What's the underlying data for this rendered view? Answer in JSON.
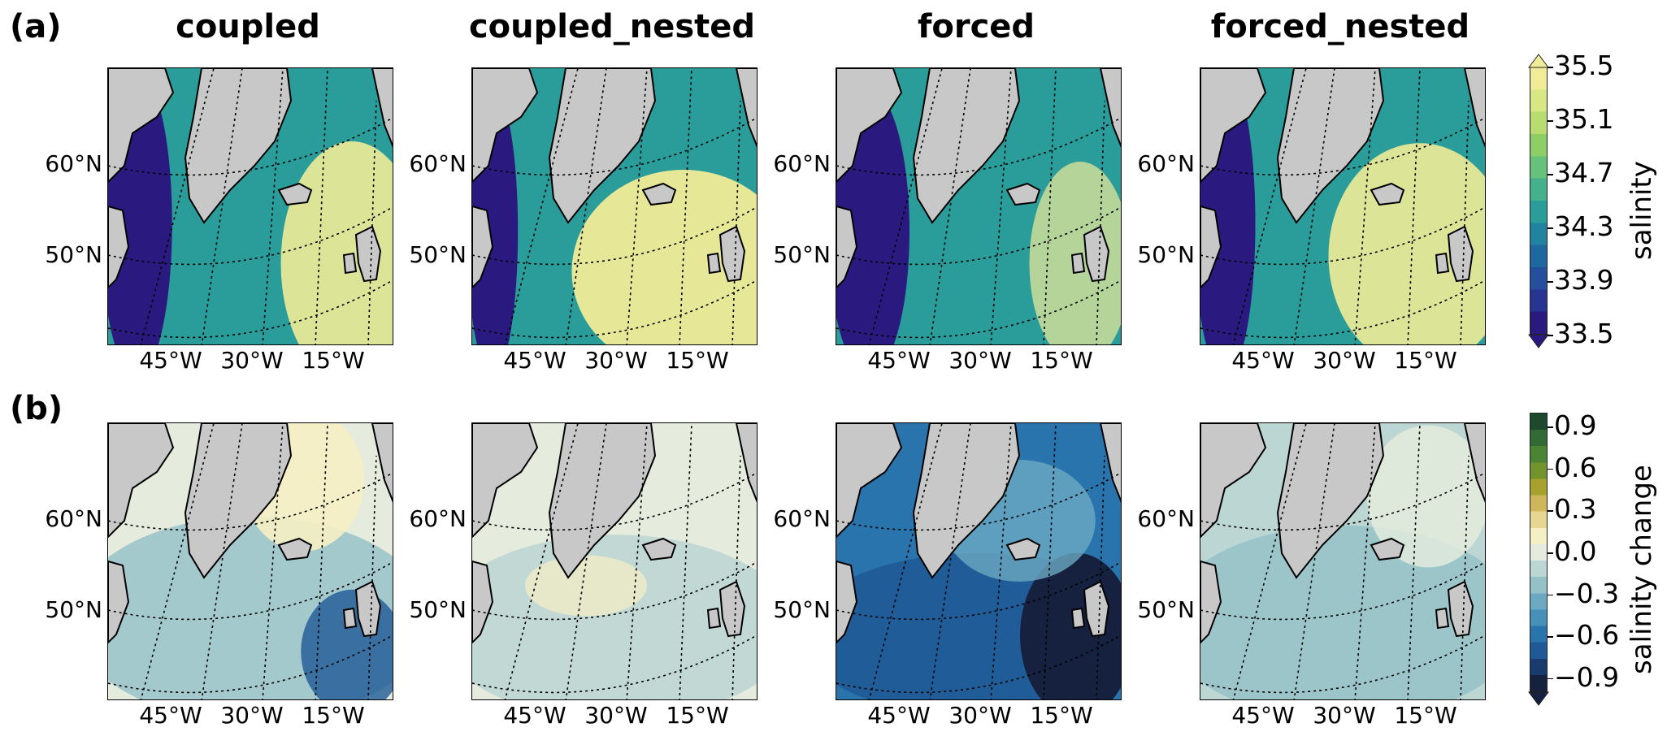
{
  "rows": [
    {
      "letter": "(a)",
      "key": "a"
    },
    {
      "letter": "(b)",
      "key": "b"
    }
  ],
  "columns": [
    "coupled",
    "coupled_nested",
    "forced",
    "forced_nested"
  ],
  "lat_labels": [
    "60°N",
    "50°N"
  ],
  "lon_labels": [
    "45°W",
    "30°W",
    "15°W"
  ],
  "colorbar_a": {
    "label": "salinity",
    "ticks": [
      "35.5",
      "35.1",
      "34.7",
      "34.3",
      "33.9",
      "33.5"
    ],
    "range": [
      33.5,
      35.5
    ],
    "colors": [
      "#2a1a80",
      "#283491",
      "#244f9c",
      "#1f689f",
      "#21839f",
      "#2a9c9a",
      "#45b08c",
      "#66c17a",
      "#8ece66",
      "#b9dc70",
      "#d9e684",
      "#f0ec98"
    ]
  },
  "colorbar_b": {
    "label": "salinity change",
    "ticks": [
      "0.9",
      "0.6",
      "0.3",
      "0.0",
      "−0.3",
      "−0.6",
      "−0.9"
    ],
    "range": [
      -1.0,
      1.0
    ],
    "colors": [
      "#15213f",
      "#1a3b6e",
      "#1f5a96",
      "#2a74ad",
      "#4690b9",
      "#6ba9c2",
      "#94c0c8",
      "#bcd6d3",
      "#e6ecdd",
      "#f5f0c4",
      "#e7d592",
      "#cdb75a",
      "#a7a22e",
      "#73942d",
      "#4b8433",
      "#316a35",
      "#1d4a2c"
    ]
  },
  "palette": {
    "land": "#c8c8c8",
    "a_low": "#2a1a80",
    "a_mid": "#2a9c9a",
    "a_high": "#f0ec98",
    "b_neutral": "#e6ecdd",
    "b_neg": "#1f5a96",
    "b_strong_neg": "#15213f",
    "b_pos": "#f5f0c4"
  }
}
